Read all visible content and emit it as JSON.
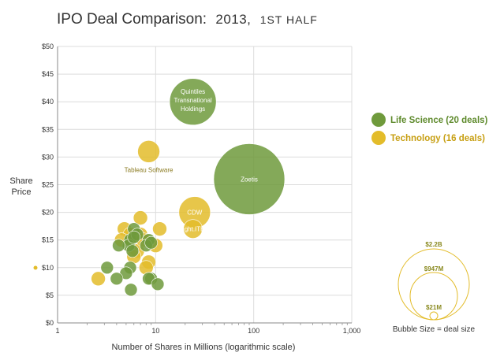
{
  "title": "IPO Deal Comparison: 2013, 1st half",
  "title_main": "IPO Deal Comparison:",
  "title_year": "2013,",
  "title_half": "1ST HALF",
  "colors": {
    "life_science": "#6f9a3c",
    "technology": "#e3bc2a",
    "grid": "#dcdcdc"
  },
  "legend": {
    "placement": "right",
    "items": [
      {
        "label": "Life Science (20 deals)",
        "color": "#6f9a3c",
        "text_color": "#5e8a2c"
      },
      {
        "label": "Technology (16 deals)",
        "color": "#e3bc2a",
        "text_color": "#c79f12"
      }
    ]
  },
  "size_legend": {
    "labels": [
      "$2.2B",
      "$947M",
      "$21M"
    ],
    "caption": "Bubble Size = deal size"
  },
  "chart_data": {
    "type": "scatter",
    "title": "IPO Deal Comparison: 2013, 1st half",
    "xlabel": "Number of Shares in Millions (logarithmic scale)",
    "ylabel": "Share Price",
    "xscale": "log",
    "xlim": [
      1,
      1000
    ],
    "ylim": [
      0,
      50
    ],
    "x_ticks": [
      "1",
      "10",
      "100",
      "1,000"
    ],
    "y_ticks": [
      "$0",
      "$5",
      "$10",
      "$15",
      "$20",
      "$25",
      "$30",
      "$35",
      "$40",
      "$45",
      "$50"
    ],
    "grid": true,
    "series": [
      {
        "name": "Life Science (20 deals)",
        "points": [
          {
            "x": 90,
            "y": 26,
            "size_musd": 2200,
            "label": "Zoetis"
          },
          {
            "x": 24,
            "y": 40,
            "size_musd": 947,
            "label": "Quintiles Transnational Holdings"
          },
          {
            "x": 6,
            "y": 17
          },
          {
            "x": 5.5,
            "y": 15
          },
          {
            "x": 8.5,
            "y": 15
          },
          {
            "x": 8,
            "y": 14
          },
          {
            "x": 5.3,
            "y": 14
          },
          {
            "x": 4.2,
            "y": 14
          },
          {
            "x": 3.2,
            "y": 10
          },
          {
            "x": 5.5,
            "y": 10
          },
          {
            "x": 5,
            "y": 9
          },
          {
            "x": 4,
            "y": 8
          },
          {
            "x": 9,
            "y": 8
          },
          {
            "x": 8.5,
            "y": 8
          },
          {
            "x": 10.5,
            "y": 7
          },
          {
            "x": 5.6,
            "y": 6
          },
          {
            "x": 6.5,
            "y": 16
          },
          {
            "x": 6,
            "y": 15.5
          },
          {
            "x": 9,
            "y": 14.5
          },
          {
            "x": 5.8,
            "y": 13
          }
        ]
      },
      {
        "name": "Technology (16 deals)",
        "points": [
          {
            "x": 8.5,
            "y": 31,
            "label": "Tableau Software"
          },
          {
            "x": 25,
            "y": 20,
            "label": "CDW"
          },
          {
            "x": 24,
            "y": 17,
            "label": "Bright.ITEC"
          },
          {
            "x": 11,
            "y": 17
          },
          {
            "x": 7,
            "y": 19
          },
          {
            "x": 4.8,
            "y": 17
          },
          {
            "x": 7,
            "y": 16
          },
          {
            "x": 6.5,
            "y": 13
          },
          {
            "x": 8.5,
            "y": 11
          },
          {
            "x": 8,
            "y": 10
          },
          {
            "x": 2.6,
            "y": 8
          },
          {
            "x": 5.5,
            "y": 16
          },
          {
            "x": 7.5,
            "y": 15
          },
          {
            "x": 4.5,
            "y": 15
          },
          {
            "x": 6,
            "y": 12
          },
          {
            "x": 10,
            "y": 14
          }
        ]
      }
    ]
  }
}
